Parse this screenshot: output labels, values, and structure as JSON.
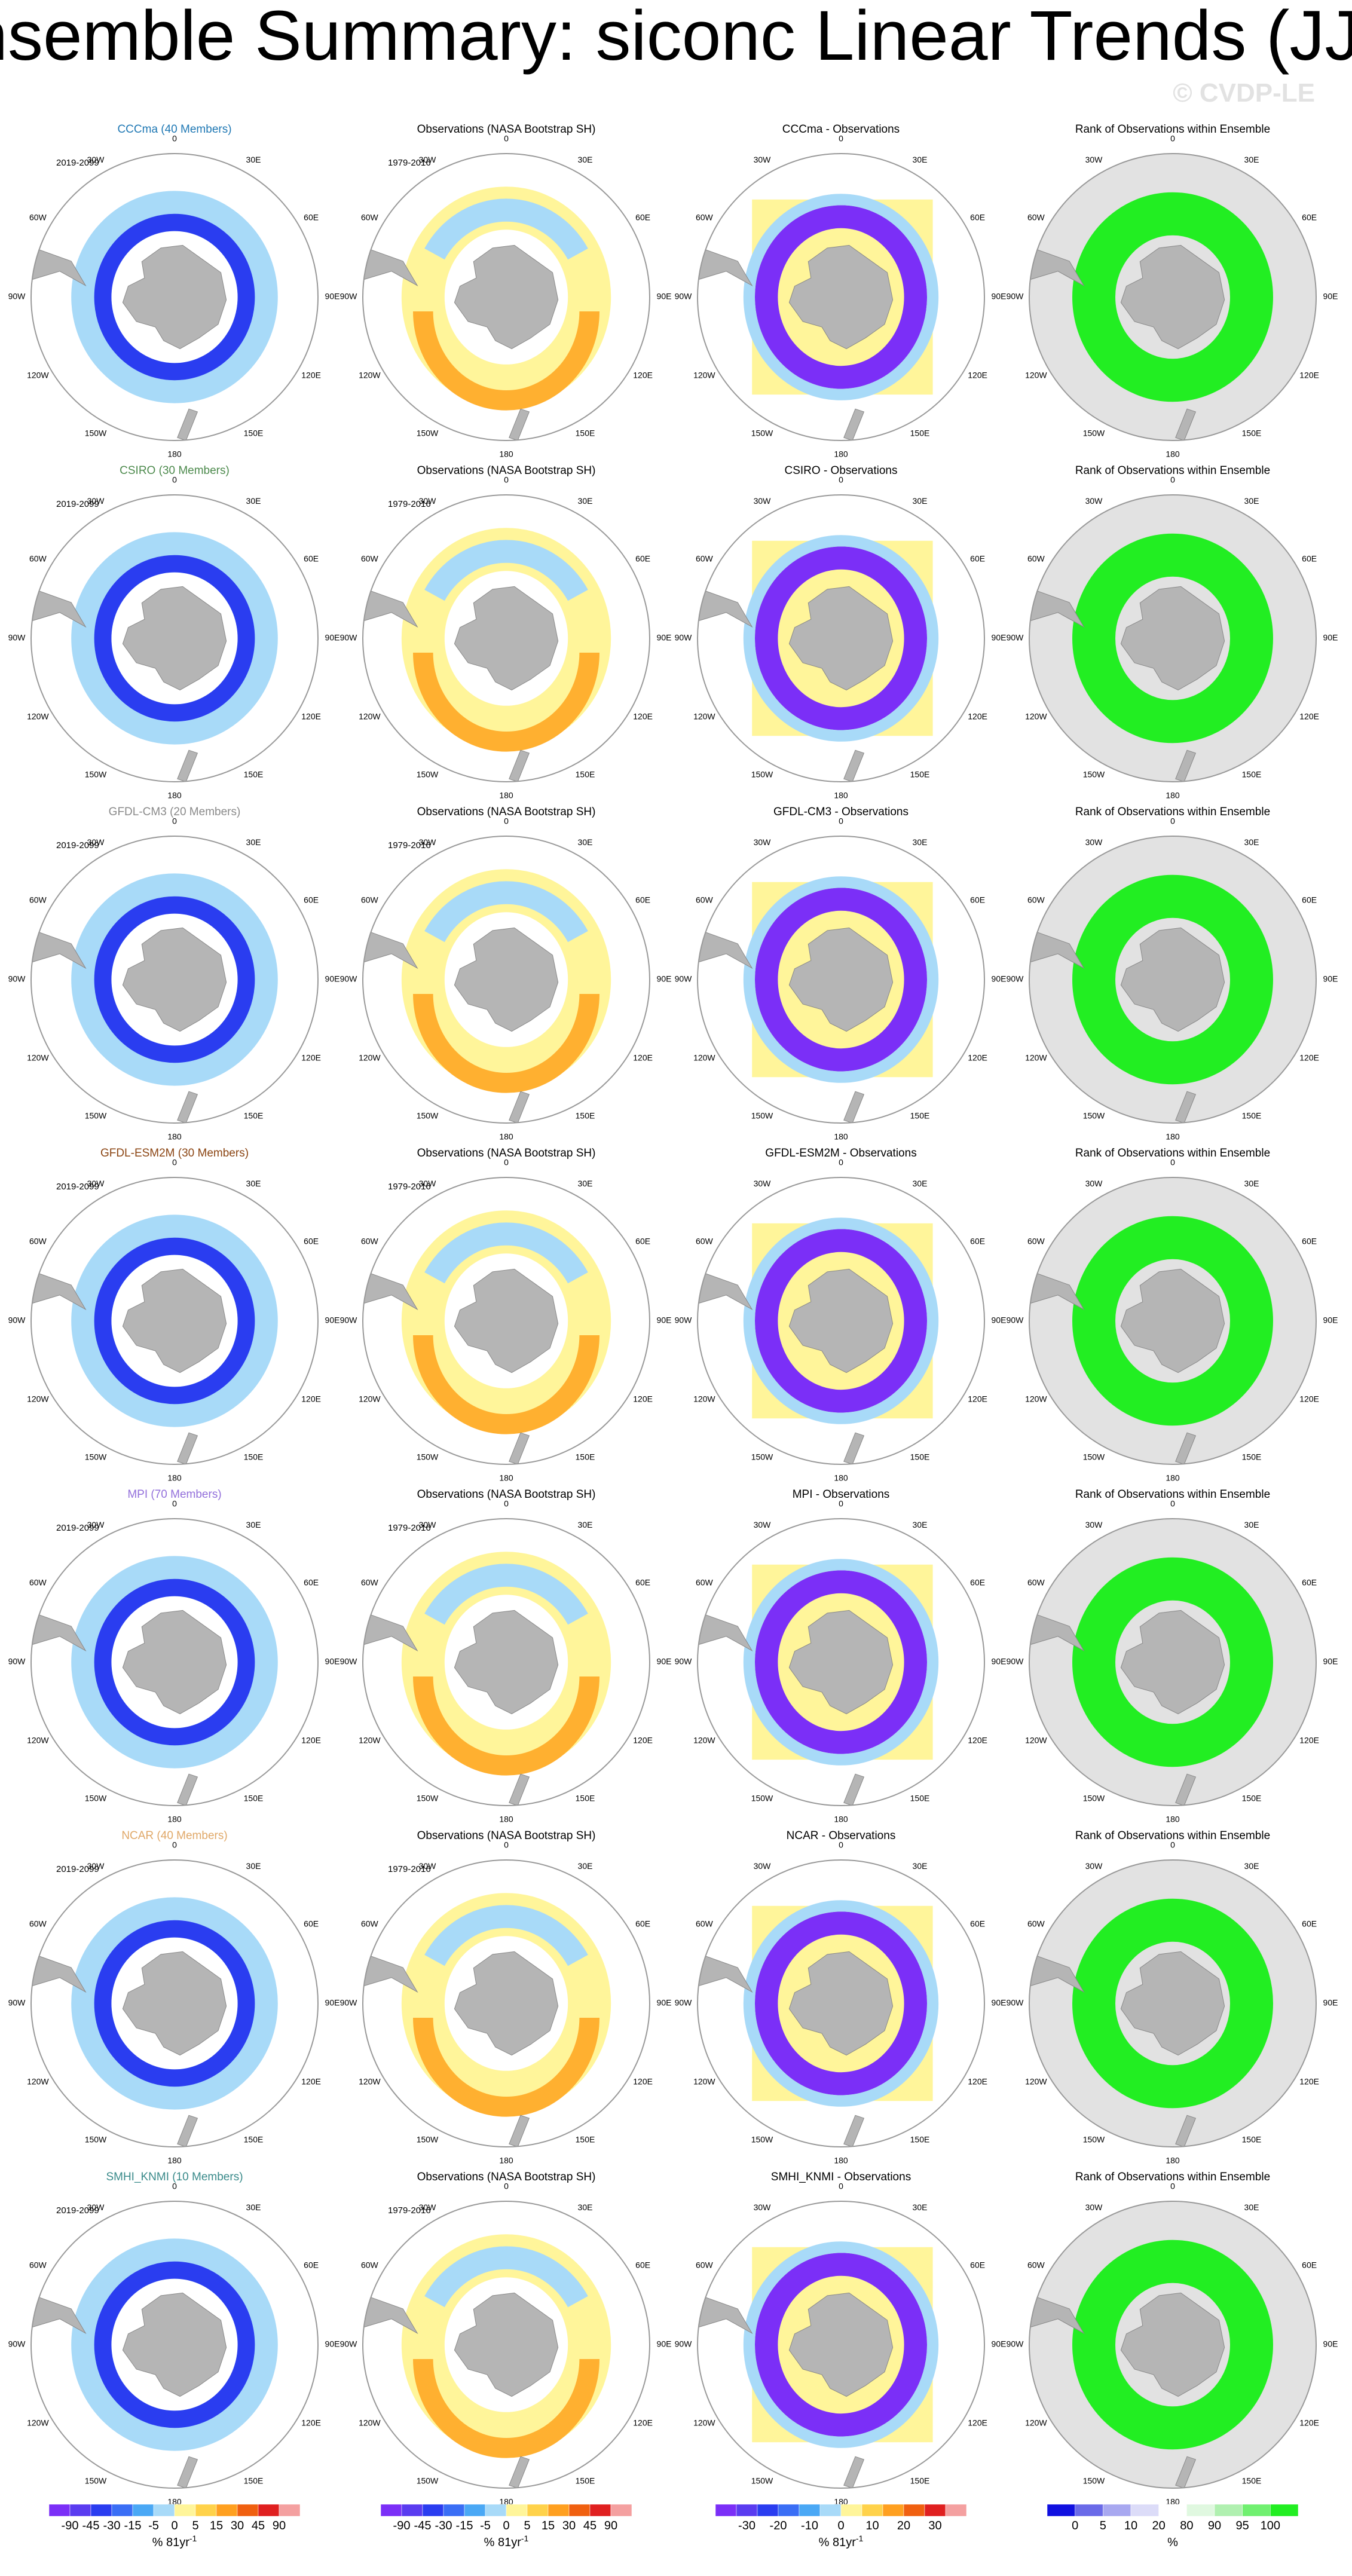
{
  "title": "Ensemble Summary: siconc Linear Trends (JJA)",
  "watermark": "© CVDP-LE",
  "longitude_labels": [
    "0",
    "30E",
    "60E",
    "90E",
    "120E",
    "150E",
    "180",
    "150W",
    "120W",
    "90W",
    "60W",
    "30W"
  ],
  "rows": [
    {
      "model": "CCCma (40 Members)",
      "model_color": "#1f78b4",
      "model_period": "2019-2099",
      "obs_title": "Observations (NASA Bootstrap SH)",
      "obs_period": "1979-2016",
      "diff_title": "CCCma - Observations",
      "rank_title": "Rank of Observations within Ensemble"
    },
    {
      "model": "CSIRO (30 Members)",
      "model_color": "#4d8a4d",
      "model_period": "2019-2099",
      "obs_title": "Observations (NASA Bootstrap SH)",
      "obs_period": "1979-2016",
      "diff_title": "CSIRO - Observations",
      "rank_title": "Rank of Observations within Ensemble"
    },
    {
      "model": "GFDL-CM3 (20 Members)",
      "model_color": "#8a8a8a",
      "model_period": "2019-2099",
      "obs_title": "Observations (NASA Bootstrap SH)",
      "obs_period": "1979-2016",
      "diff_title": "GFDL-CM3 - Observations",
      "rank_title": "Rank of Observations within Ensemble"
    },
    {
      "model": "GFDL-ESM2M (30 Members)",
      "model_color": "#8b4513",
      "model_period": "2019-2099",
      "obs_title": "Observations (NASA Bootstrap SH)",
      "obs_period": "1979-2016",
      "diff_title": "GFDL-ESM2M - Observations",
      "rank_title": "Rank of Observations within Ensemble"
    },
    {
      "model": "MPI (70 Members)",
      "model_color": "#9370db",
      "model_period": "2019-2099",
      "obs_title": "Observations (NASA Bootstrap SH)",
      "obs_period": "1979-2016",
      "diff_title": "MPI - Observations",
      "rank_title": "Rank of Observations within Ensemble"
    },
    {
      "model": "NCAR (40 Members)",
      "model_color": "#e0a868",
      "model_period": "2019-2099",
      "obs_title": "Observations (NASA Bootstrap SH)",
      "obs_period": "1979-2016",
      "diff_title": "NCAR - Observations",
      "rank_title": "Rank of Observations within Ensemble"
    },
    {
      "model": "SMHI_KNMI (10 Members)",
      "model_color": "#3a8a8a",
      "model_period": "2019-2099",
      "obs_title": "Observations (NASA Bootstrap SH)",
      "obs_period": "1979-2016",
      "diff_title": "SMHI_KNMI - Observations",
      "rank_title": "Rank of Observations within Ensemble"
    }
  ],
  "colorbars": [
    {
      "labels": [
        "-90",
        "-45",
        "-30",
        "-15",
        "-5",
        "0",
        "5",
        "15",
        "30",
        "45",
        "90"
      ],
      "units": "% 81yr",
      "units_sup": "-1",
      "colors": [
        "#7b2ff7",
        "#5a3cf0",
        "#2a3df0",
        "#3a6ef5",
        "#4aa8f5",
        "#a8daf8",
        "#fff59a",
        "#ffd24a",
        "#ffa020",
        "#f06010",
        "#e02020",
        "#f4a0a0"
      ]
    },
    {
      "labels": [
        "-90",
        "-45",
        "-30",
        "-15",
        "-5",
        "0",
        "5",
        "15",
        "30",
        "45",
        "90"
      ],
      "units": "% 81yr",
      "units_sup": "-1",
      "colors": [
        "#7b2ff7",
        "#5a3cf0",
        "#2a3df0",
        "#3a6ef5",
        "#4aa8f5",
        "#a8daf8",
        "#fff59a",
        "#ffd24a",
        "#ffa020",
        "#f06010",
        "#e02020",
        "#f4a0a0"
      ]
    },
    {
      "labels": [
        "-30",
        "-20",
        "-10",
        "0",
        "10",
        "20",
        "30"
      ],
      "units": "% 81yr",
      "units_sup": "-1",
      "colors": [
        "#7b2ff7",
        "#5a3cf0",
        "#2a3df0",
        "#3a6ef5",
        "#4aa8f5",
        "#a8daf8",
        "#fff59a",
        "#ffd24a",
        "#ffa020",
        "#f06010",
        "#e02020",
        "#f4a0a0"
      ]
    },
    {
      "labels": [
        "0",
        "5",
        "10",
        "20",
        "80",
        "90",
        "95",
        "100"
      ],
      "units": "%",
      "colors": [
        "#1010e0",
        "#6a6ae8",
        "#a8a8f0",
        "#dcdcf8",
        "#ffffff",
        "#e0f8e0",
        "#b0f0b0",
        "#70f070",
        "#22ee22"
      ]
    }
  ]
}
